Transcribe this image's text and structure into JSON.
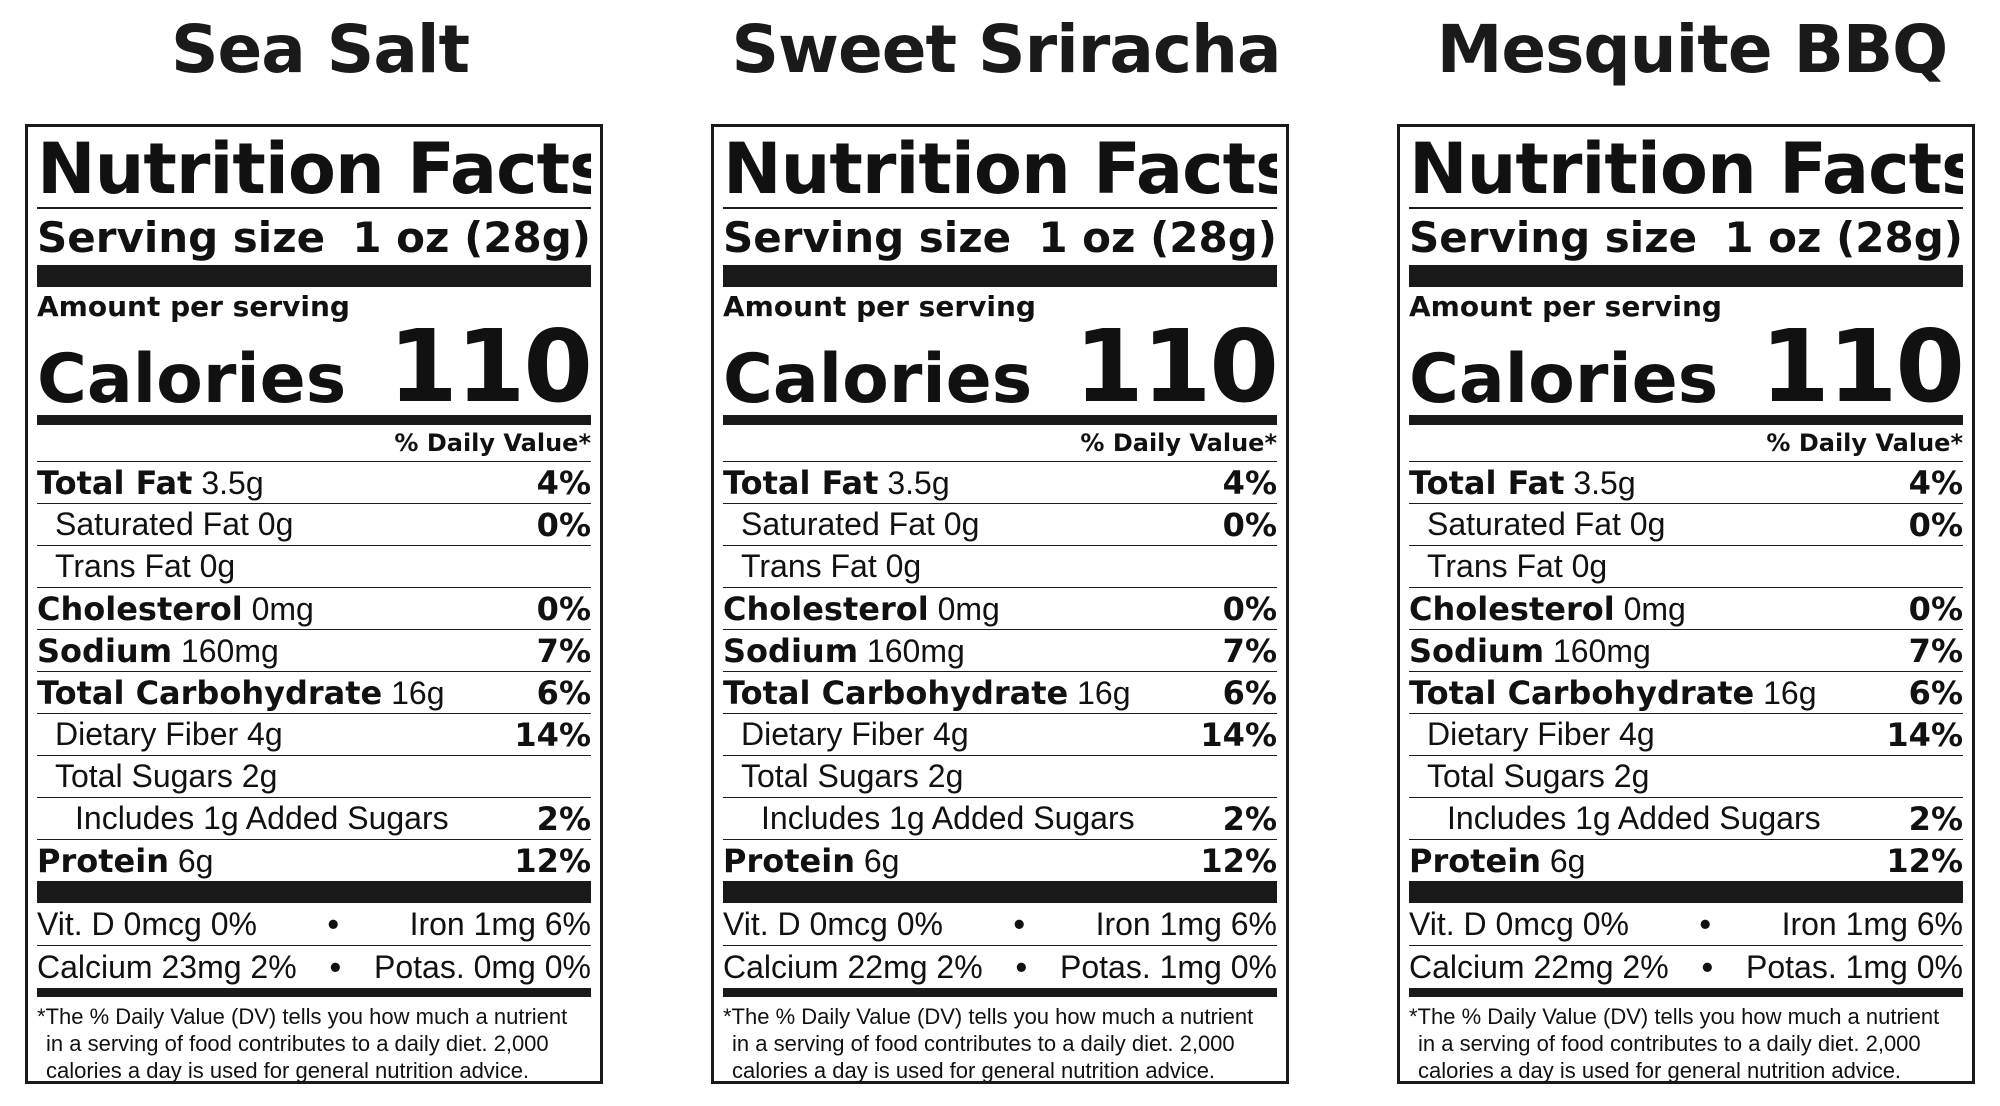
{
  "labels": [
    {
      "flavor": "Sea Salt",
      "title": "Nutrition Facts",
      "serving_label": "Serving size",
      "serving_value": "1 oz (28g)",
      "amount_per_serving": "Amount per serving",
      "calories_label": "Calories",
      "calories_value": "110",
      "dv_header": "% Daily Value*",
      "nutrients": {
        "total_fat": {
          "label": "Total Fat",
          "amount": "3.5g",
          "pct": "4%"
        },
        "saturated_fat": {
          "label": "Saturated Fat 0g",
          "pct": "0%"
        },
        "trans_fat": {
          "label": "Trans Fat 0g"
        },
        "cholesterol": {
          "label": "Cholesterol",
          "amount": "0mg",
          "pct": "0%"
        },
        "sodium": {
          "label": "Sodium",
          "amount": "160mg",
          "pct": "7%"
        },
        "total_carbohydrate": {
          "label": "Total Carbohydrate",
          "amount": "16g",
          "pct": "6%"
        },
        "dietary_fiber": {
          "label": "Dietary Fiber 4g",
          "pct": "14%"
        },
        "total_sugars": {
          "label": "Total Sugars 2g"
        },
        "added_sugars": {
          "label": "Includes 1g Added Sugars",
          "pct": "2%"
        },
        "protein": {
          "label": "Protein",
          "amount": "6g",
          "pct": "12%"
        }
      },
      "vitamins": {
        "vit_d": "Vit. D 0mcg 0%",
        "iron": "Iron 1mg 6%",
        "calcium": "Calcium 23mg 2%",
        "potassium": "Potas. 0mg 0%",
        "separator": "•"
      },
      "footnote": {
        "line1": "*The % Daily Value (DV) tells you how much a nutrient",
        "line2": "in a serving of food contributes to a daily diet. 2,000",
        "line3": "calories a day is used for general nutrition advice."
      }
    },
    {
      "flavor": "Sweet Sriracha",
      "title": "Nutrition Facts",
      "serving_label": "Serving size",
      "serving_value": "1 oz (28g)",
      "amount_per_serving": "Amount per serving",
      "calories_label": "Calories",
      "calories_value": "110",
      "dv_header": "% Daily Value*",
      "nutrients": {
        "total_fat": {
          "label": "Total Fat",
          "amount": "3.5g",
          "pct": "4%"
        },
        "saturated_fat": {
          "label": "Saturated Fat 0g",
          "pct": "0%"
        },
        "trans_fat": {
          "label": "Trans Fat 0g"
        },
        "cholesterol": {
          "label": "Cholesterol",
          "amount": "0mg",
          "pct": "0%"
        },
        "sodium": {
          "label": "Sodium",
          "amount": "160mg",
          "pct": "7%"
        },
        "total_carbohydrate": {
          "label": "Total Carbohydrate",
          "amount": "16g",
          "pct": "6%"
        },
        "dietary_fiber": {
          "label": "Dietary Fiber 4g",
          "pct": "14%"
        },
        "total_sugars": {
          "label": "Total Sugars 2g"
        },
        "added_sugars": {
          "label": "Includes 1g Added Sugars",
          "pct": "2%"
        },
        "protein": {
          "label": "Protein",
          "amount": "6g",
          "pct": "12%"
        }
      },
      "vitamins": {
        "vit_d": "Vit. D 0mcg 0%",
        "iron": "Iron 1mg 6%",
        "calcium": "Calcium 22mg 2%",
        "potassium": "Potas. 1mg 0%",
        "separator": "•"
      },
      "footnote": {
        "line1": "*The % Daily Value (DV) tells you how much a nutrient",
        "line2": "in a serving of food contributes to a daily diet. 2,000",
        "line3": "calories a day is used for general nutrition advice."
      }
    },
    {
      "flavor": "Mesquite BBQ",
      "title": "Nutrition Facts",
      "serving_label": "Serving size",
      "serving_value": "1 oz (28g)",
      "amount_per_serving": "Amount per serving",
      "calories_label": "Calories",
      "calories_value": "110",
      "dv_header": "% Daily Value*",
      "nutrients": {
        "total_fat": {
          "label": "Total Fat",
          "amount": "3.5g",
          "pct": "4%"
        },
        "saturated_fat": {
          "label": "Saturated Fat 0g",
          "pct": "0%"
        },
        "trans_fat": {
          "label": "Trans Fat 0g"
        },
        "cholesterol": {
          "label": "Cholesterol",
          "amount": "0mg",
          "pct": "0%"
        },
        "sodium": {
          "label": "Sodium",
          "amount": "160mg",
          "pct": "7%"
        },
        "total_carbohydrate": {
          "label": "Total Carbohydrate",
          "amount": "16g",
          "pct": "6%"
        },
        "dietary_fiber": {
          "label": "Dietary Fiber 4g",
          "pct": "14%"
        },
        "total_sugars": {
          "label": "Total Sugars 2g"
        },
        "added_sugars": {
          "label": "Includes 1g Added Sugars",
          "pct": "2%"
        },
        "protein": {
          "label": "Protein",
          "amount": "6g",
          "pct": "12%"
        }
      },
      "vitamins": {
        "vit_d": "Vit. D 0mcg 0%",
        "iron": "Iron 1mg 6%",
        "calcium": "Calcium 22mg 2%",
        "potassium": "Potas. 1mg 0%",
        "separator": "•"
      },
      "footnote": {
        "line1": "*The % Daily Value (DV) tells you how much a nutrient",
        "line2": "in a serving of food contributes to a daily diet. 2,000",
        "line3": "calories a day is used for general nutrition advice."
      }
    }
  ]
}
